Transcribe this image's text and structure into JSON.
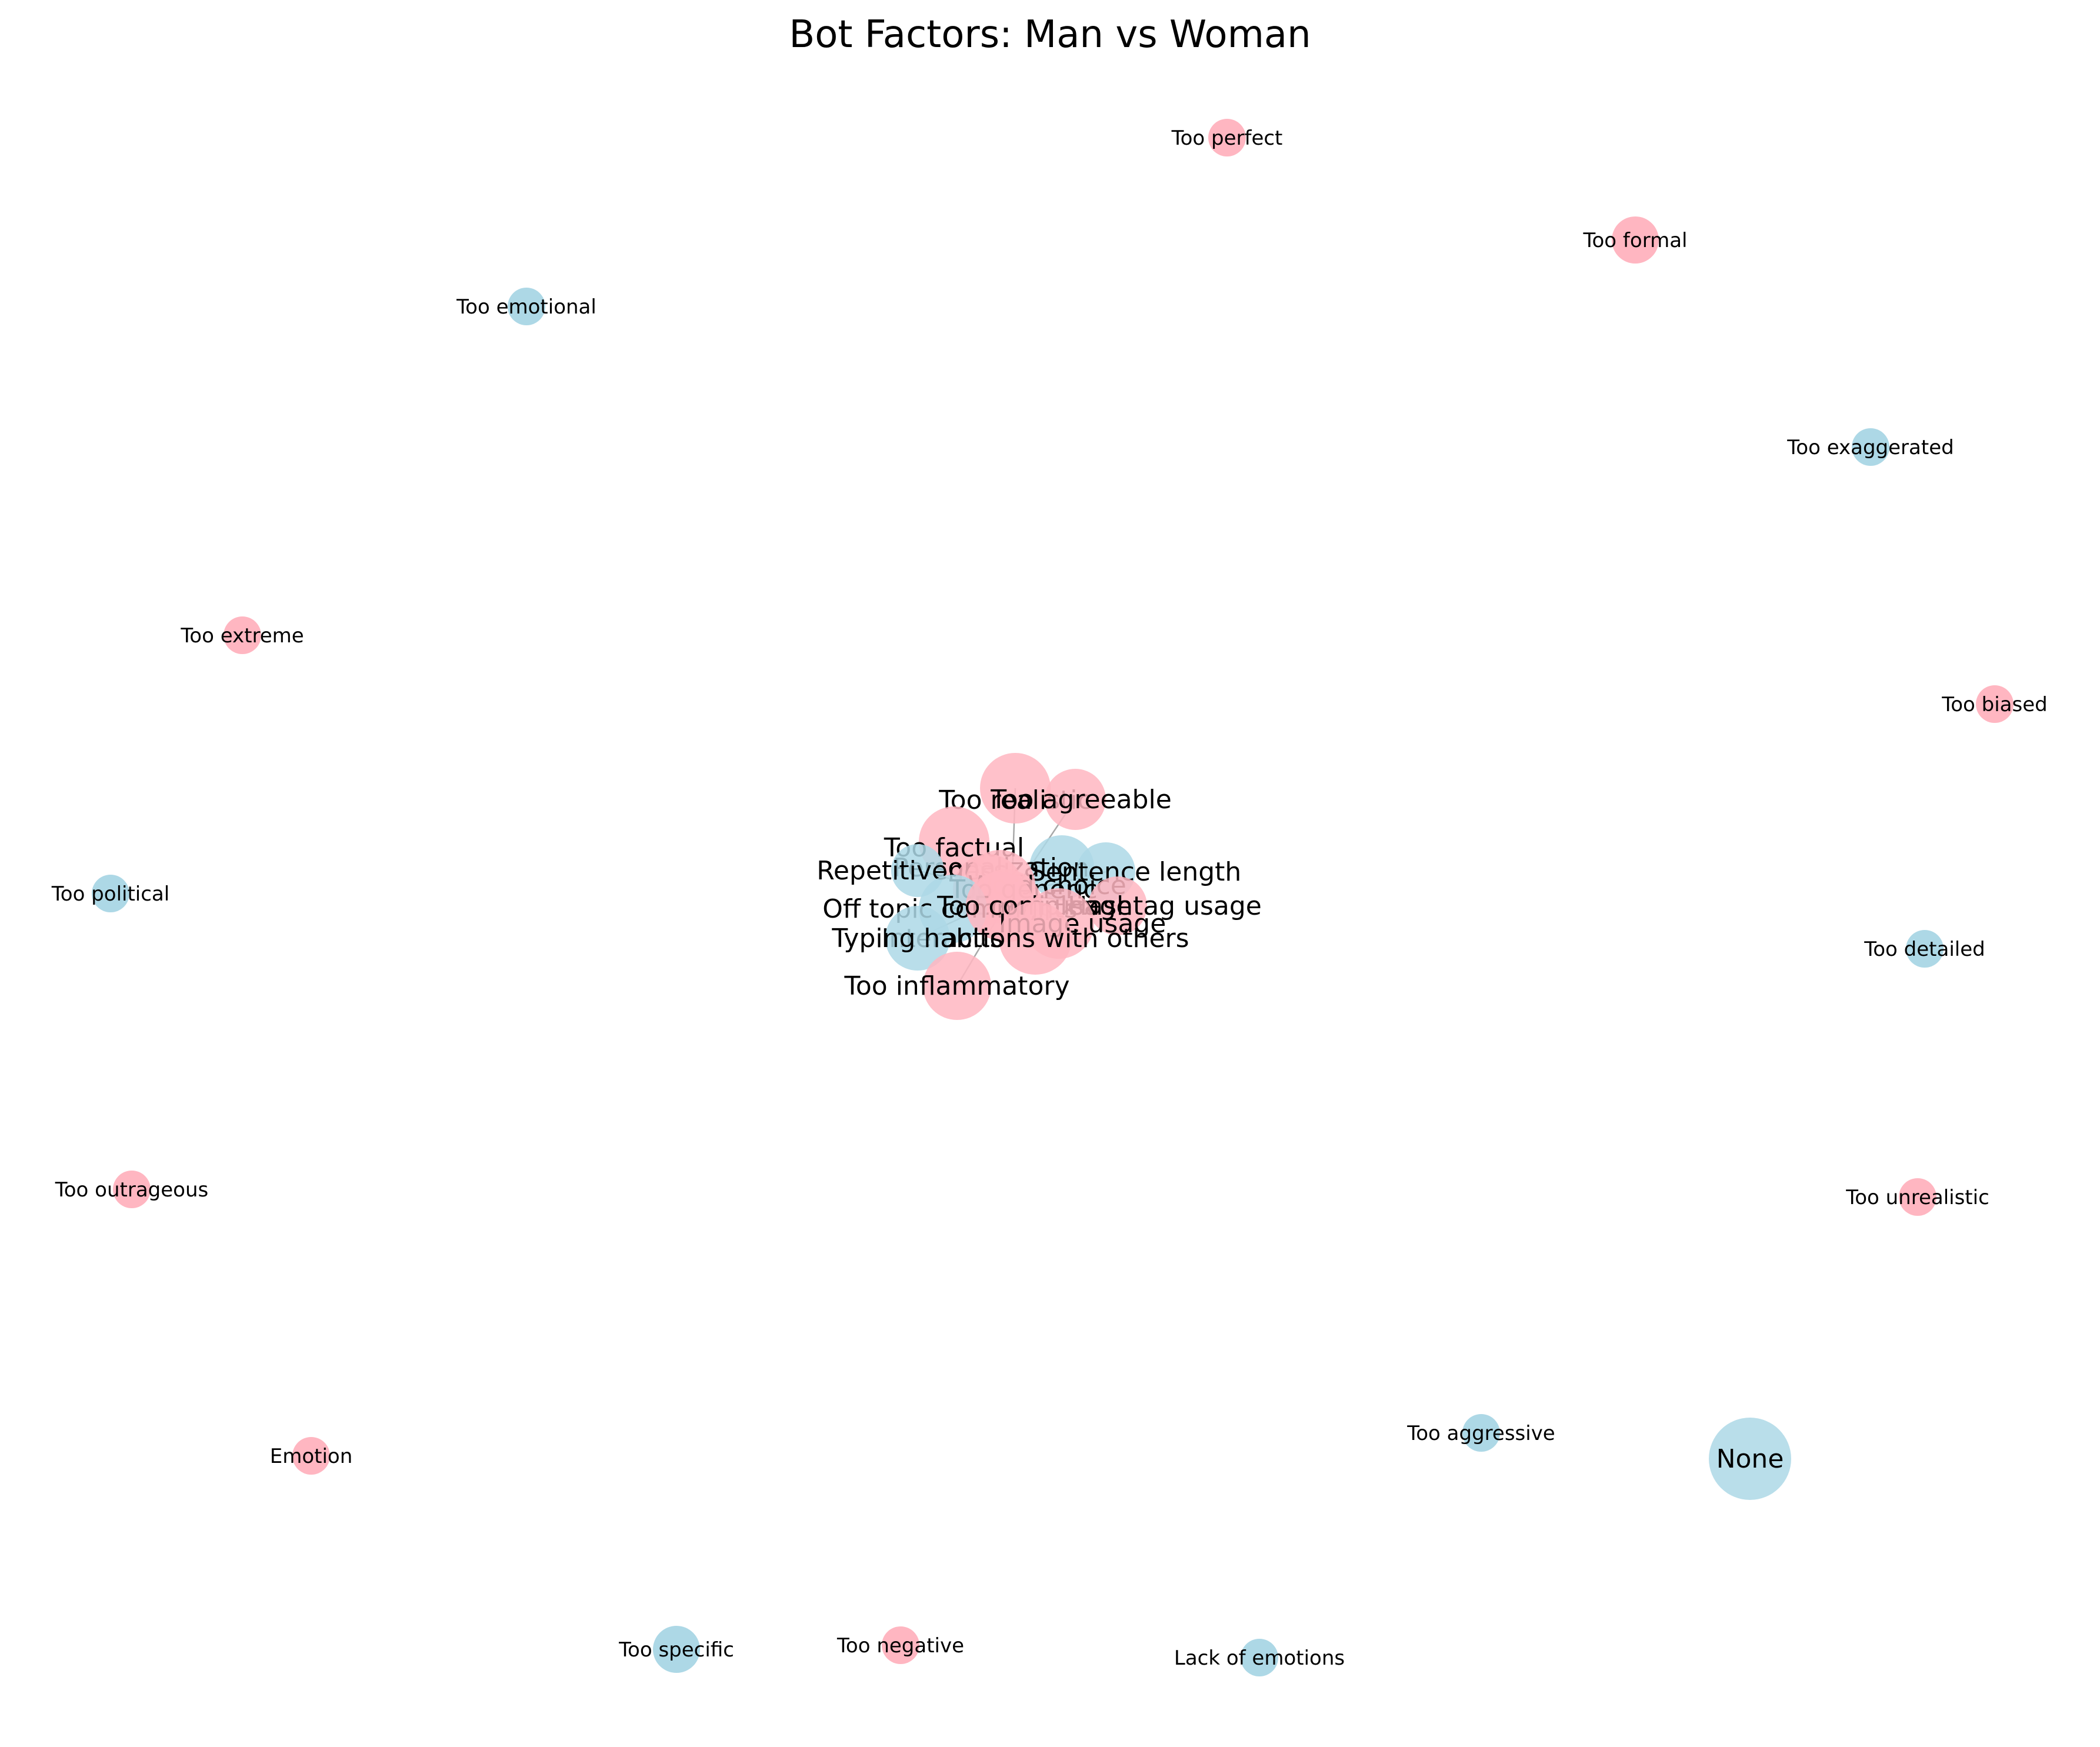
{
  "title": "Bot Factors: Man vs Woman",
  "colors": {
    "man": "#add8e6",
    "woman": "#ffb6c1",
    "edge": "#a8a8a8"
  },
  "nodes": [
    {
      "id": "too-perfect",
      "label": "Too perfect",
      "group": "woman",
      "size": "small"
    },
    {
      "id": "too-formal",
      "label": "Too formal",
      "group": "woman",
      "size": "small"
    },
    {
      "id": "too-emotional",
      "label": "Too emotional",
      "group": "man",
      "size": "small"
    },
    {
      "id": "too-exaggerated",
      "label": "Too exaggerated",
      "group": "man",
      "size": "small"
    },
    {
      "id": "too-extreme",
      "label": "Too extreme",
      "group": "woman",
      "size": "small"
    },
    {
      "id": "too-biased",
      "label": "Too biased",
      "group": "woman",
      "size": "small"
    },
    {
      "id": "too-political",
      "label": "Too political",
      "group": "man",
      "size": "small"
    },
    {
      "id": "too-detailed",
      "label": "Too detailed",
      "group": "man",
      "size": "small"
    },
    {
      "id": "too-outrageous",
      "label": "Too outrageous",
      "group": "woman",
      "size": "small"
    },
    {
      "id": "too-unrealistic",
      "label": "Too unrealistic",
      "group": "woman",
      "size": "small"
    },
    {
      "id": "emotion",
      "label": "Emotion",
      "group": "woman",
      "size": "small"
    },
    {
      "id": "too-aggressive",
      "label": "Too aggressive",
      "group": "man",
      "size": "small"
    },
    {
      "id": "none",
      "label": "None",
      "group": "man",
      "size": "large"
    },
    {
      "id": "too-specific",
      "label": "Too specific",
      "group": "man",
      "size": "small"
    },
    {
      "id": "too-negative",
      "label": "Too negative",
      "group": "woman",
      "size": "small"
    },
    {
      "id": "lack-of-emotions",
      "label": "Lack of emotions",
      "group": "man",
      "size": "small"
    },
    {
      "id": "too-realistic",
      "label": "Too realistic",
      "group": "woman",
      "size": "large"
    },
    {
      "id": "too-agreeable",
      "label": "Too agreeable",
      "group": "woman",
      "size": "large"
    },
    {
      "id": "too-factual",
      "label": "Too factual",
      "group": "woman",
      "size": "large"
    },
    {
      "id": "personalization",
      "label": "Personalization",
      "group": "man",
      "size": "large"
    },
    {
      "id": "repetitiveness",
      "label": "Repetitiveness",
      "group": "man",
      "size": "large"
    },
    {
      "id": "sentence-length",
      "label": "Sentence length",
      "group": "man",
      "size": "large"
    },
    {
      "id": "word-choice",
      "label": "Word choice",
      "group": "woman",
      "size": "large"
    },
    {
      "id": "too-generic",
      "label": "Too generic",
      "group": "woman",
      "size": "large"
    },
    {
      "id": "hashtag-usage",
      "label": "Hashtag usage",
      "group": "woman",
      "size": "large"
    },
    {
      "id": "emoji-usage",
      "label": "Emoji usage",
      "group": "woman",
      "size": "large"
    },
    {
      "id": "off-topic-comments",
      "label": "Off topic comments",
      "group": "man",
      "size": "large"
    },
    {
      "id": "too-complex",
      "label": "Too complex",
      "group": "woman",
      "size": "large"
    },
    {
      "id": "image-usage",
      "label": "Image usage",
      "group": "woman",
      "size": "large"
    },
    {
      "id": "interactions-with-others",
      "label": "Interactions with others",
      "group": "woman",
      "size": "large"
    },
    {
      "id": "typing-habits",
      "label": "Typing habits",
      "group": "man",
      "size": "large"
    },
    {
      "id": "too-inflammatory",
      "label": "Too inflammatory",
      "group": "woman",
      "size": "large"
    }
  ]
}
